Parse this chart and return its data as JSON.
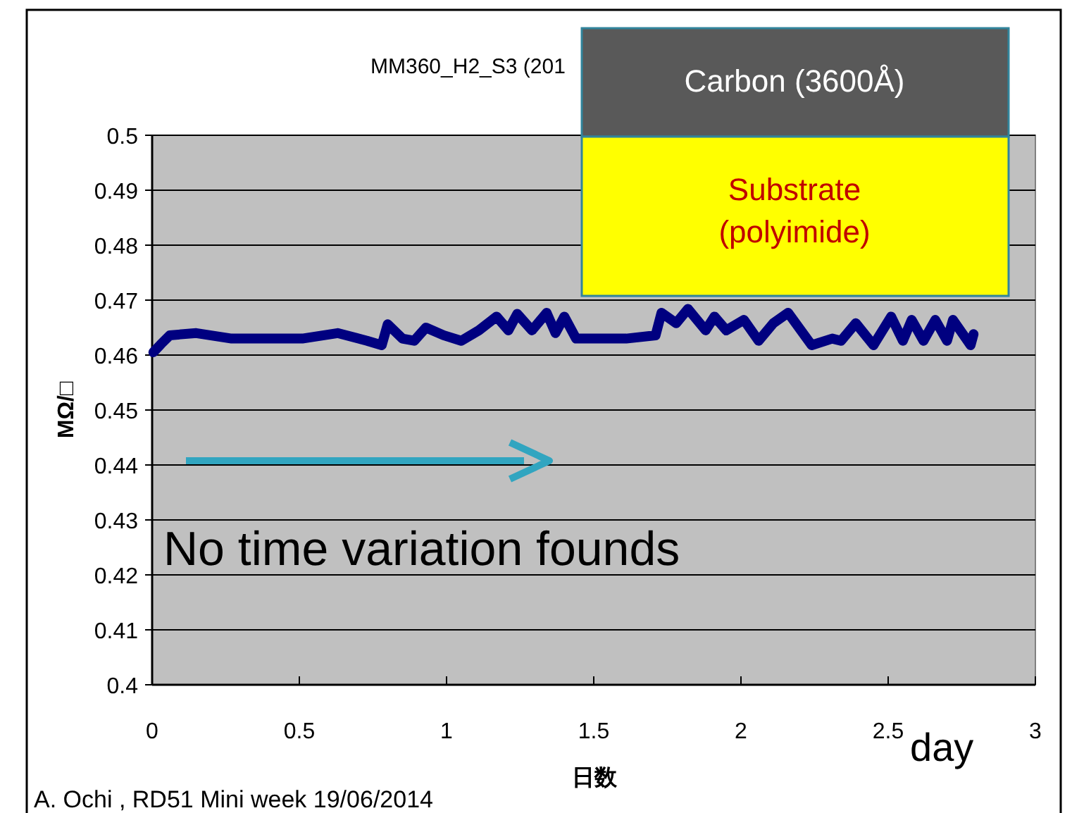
{
  "chart_data": {
    "type": "line",
    "title": "MM360_H2_S3 (201",
    "xlabel": "日数",
    "ylabel": "MΩ/□",
    "xlim": [
      0,
      3
    ],
    "xticks": [
      0,
      0.5,
      1,
      1.5,
      2,
      2.5,
      3
    ],
    "ylim": [
      0.4,
      0.5
    ],
    "yticks": [
      0.4,
      0.41,
      0.42,
      0.43,
      0.44,
      0.45,
      0.46,
      0.47,
      0.48,
      0.49,
      0.5
    ],
    "grid": "y",
    "series": [
      {
        "color": "#000080",
        "x": [
          0.004,
          0.03,
          0.06,
          0.15,
          0.27,
          0.51,
          0.63,
          0.73,
          0.78,
          0.8,
          0.85,
          0.89,
          0.93,
          0.99,
          1.05,
          1.11,
          1.17,
          1.21,
          1.24,
          1.29,
          1.34,
          1.37,
          1.4,
          1.44,
          1.61,
          1.71,
          1.73,
          1.78,
          1.82,
          1.88,
          1.91,
          1.95,
          2.01,
          2.06,
          2.11,
          2.16,
          2.24,
          2.31,
          2.34,
          2.39,
          2.45,
          2.51,
          2.55,
          2.58,
          2.62,
          2.66,
          2.7,
          2.72,
          2.78,
          2.79
        ],
        "values": [
          0.4605,
          0.462,
          0.4636,
          0.464,
          0.463,
          0.463,
          0.464,
          0.4626,
          0.4618,
          0.4656,
          0.463,
          0.4626,
          0.465,
          0.4636,
          0.4626,
          0.4645,
          0.467,
          0.4645,
          0.4675,
          0.4645,
          0.4677,
          0.464,
          0.467,
          0.463,
          0.463,
          0.4636,
          0.4677,
          0.4658,
          0.4684,
          0.4645,
          0.467,
          0.4645,
          0.4664,
          0.4626,
          0.4658,
          0.4677,
          0.4618,
          0.463,
          0.4626,
          0.4658,
          0.4618,
          0.467,
          0.4626,
          0.4664,
          0.4626,
          0.4664,
          0.4626,
          0.4664,
          0.4618,
          0.4638
        ]
      }
    ],
    "annotations": [
      "Carbon (3600Å)",
      "Substrate (polyimide)",
      "No time variation founds",
      "day",
      "A. Ochi , RD51 Mini week 19/06/2014"
    ]
  }
}
